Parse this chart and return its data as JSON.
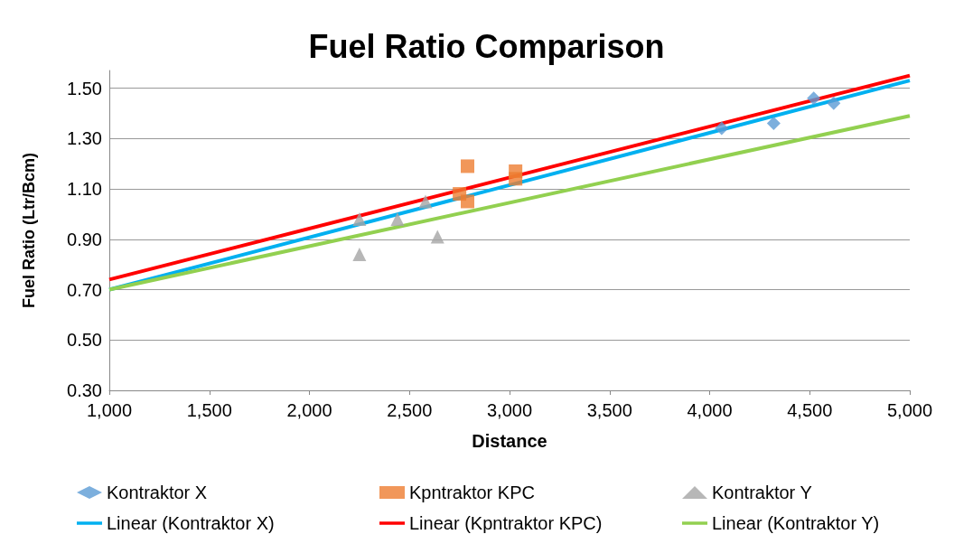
{
  "chart_data": {
    "type": "scatter",
    "title": "Fuel Ratio Comparison",
    "xlabel": "Distance",
    "ylabel": "Fuel Ratio (Ltr/Bcm)",
    "xlim": [
      1000,
      5000
    ],
    "xticks": [
      {
        "value": 1000,
        "label": "1,000"
      },
      {
        "value": 1500,
        "label": "1,500"
      },
      {
        "value": 2000,
        "label": "2,000"
      },
      {
        "value": 2500,
        "label": "2,500"
      },
      {
        "value": 3000,
        "label": "3,000"
      },
      {
        "value": 3500,
        "label": "3,500"
      },
      {
        "value": 4000,
        "label": "4,000"
      },
      {
        "value": 4500,
        "label": "4,500"
      },
      {
        "value": 5000,
        "label": "5,000"
      }
    ],
    "ylim": [
      0.3,
      1.57
    ],
    "yticks": [
      {
        "value": 0.3,
        "label": "0.30"
      },
      {
        "value": 0.5,
        "label": "0.50"
      },
      {
        "value": 0.7,
        "label": "0.70"
      },
      {
        "value": 0.9,
        "label": "0.90"
      },
      {
        "value": 1.1,
        "label": "1.10"
      },
      {
        "value": 1.3,
        "label": "1.30"
      },
      {
        "value": 1.5,
        "label": "1.50"
      }
    ],
    "grid": "y",
    "legend": "bottom",
    "series": [
      {
        "name": "Kontraktor X",
        "marker": "diamond",
        "color": "#5b9bd5",
        "x": [
          4060,
          4320,
          4520,
          4620
        ],
        "values": [
          1.34,
          1.36,
          1.46,
          1.44
        ]
      },
      {
        "name": "Kpntraktor KPC",
        "marker": "square",
        "color": "#ed7d31",
        "x": [
          2750,
          2790,
          2790,
          3030,
          3030
        ],
        "values": [
          1.08,
          1.05,
          1.19,
          1.17,
          1.14
        ]
      },
      {
        "name": "Kontraktor Y",
        "marker": "triangle",
        "color": "#a5a5a5",
        "x": [
          2250,
          2250,
          2440,
          2580,
          2640
        ],
        "values": [
          0.98,
          0.84,
          0.98,
          1.05,
          0.91
        ]
      },
      {
        "name": "Linear (Kontraktor X)",
        "type": "line",
        "marker": "none",
        "color": "#00b0f0",
        "x": [
          1000,
          5000
        ],
        "values": [
          0.7,
          1.53
        ]
      },
      {
        "name": "Linear (Kpntraktor KPC)",
        "type": "line",
        "marker": "none",
        "color": "#ff0000",
        "x": [
          1000,
          5000
        ],
        "values": [
          0.74,
          1.55
        ]
      },
      {
        "name": "Linear (Kontraktor Y)",
        "type": "line",
        "marker": "none",
        "color": "#92d050",
        "x": [
          1000,
          5000
        ],
        "values": [
          0.7,
          1.39
        ]
      }
    ]
  }
}
